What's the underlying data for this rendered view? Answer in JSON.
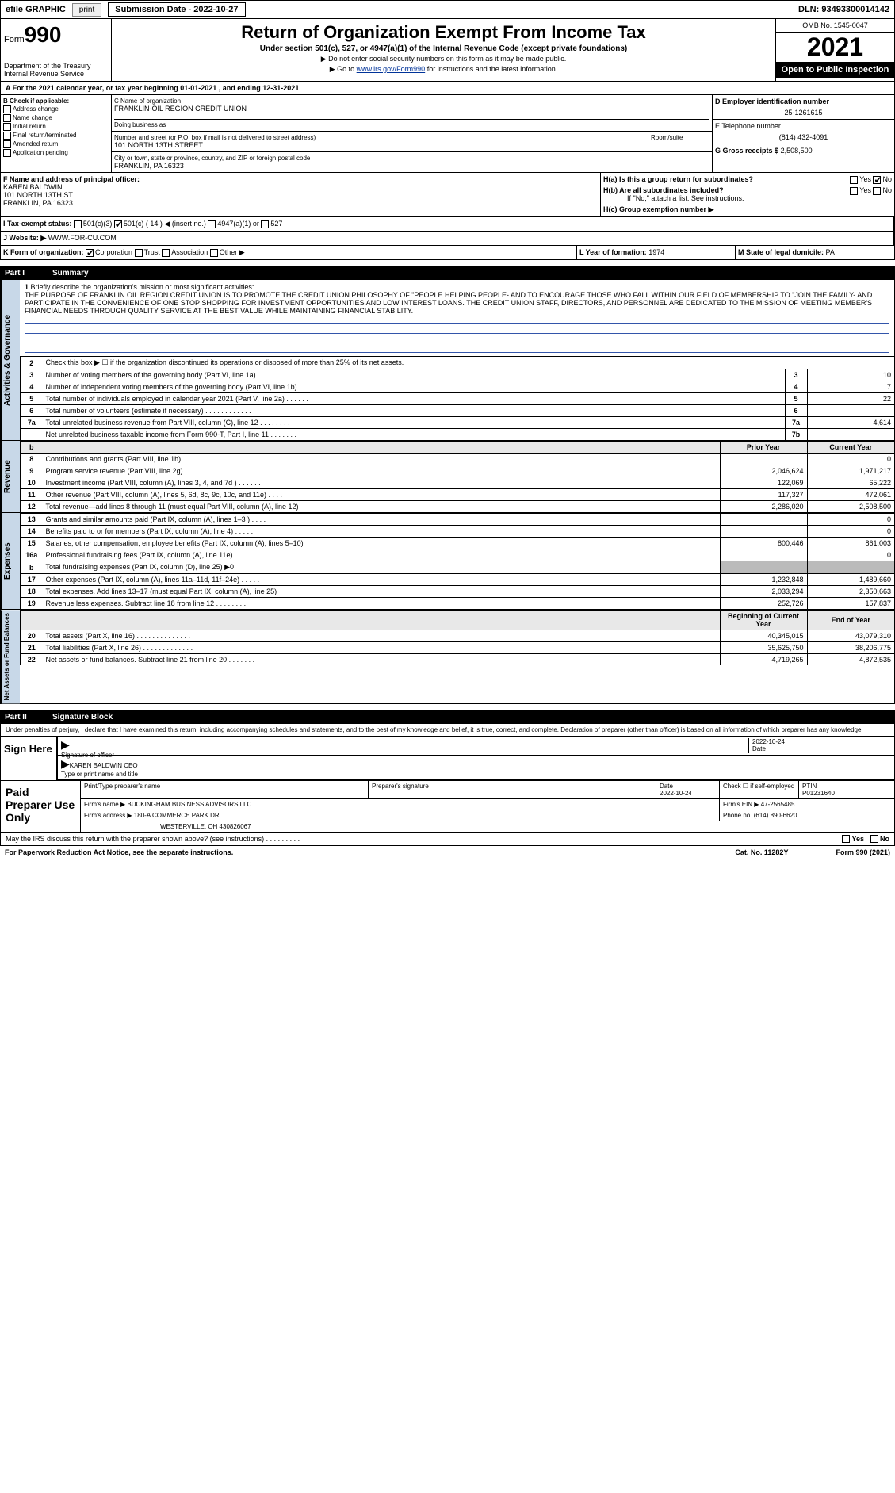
{
  "topbar": {
    "efile": "efile GRAPHIC",
    "print_btn": "print",
    "submission": "Submission Date - 2022-10-27",
    "dln": "DLN: 93493300014142"
  },
  "header": {
    "form_label": "Form",
    "form_num": "990",
    "dept": "Department of the Treasury\nInternal Revenue Service",
    "title": "Return of Organization Exempt From Income Tax",
    "subtitle": "Under section 501(c), 527, or 4947(a)(1) of the Internal Revenue Code (except private foundations)",
    "instruct1": "▶ Do not enter social security numbers on this form as it may be made public.",
    "instruct2_pre": "▶ Go to ",
    "instruct2_link": "www.irs.gov/Form990",
    "instruct2_post": " for instructions and the latest information.",
    "omb": "OMB No. 1545-0047",
    "year": "2021",
    "open_pub": "Open to Public Inspection"
  },
  "row_a": {
    "text": "A For the 2021 calendar year, or tax year beginning 01-01-2021   , and ending 12-31-2021"
  },
  "col_b": {
    "title": "B Check if applicable:",
    "items": [
      "Address change",
      "Name change",
      "Initial return",
      "Final return/terminated",
      "Amended return",
      "Application pending"
    ]
  },
  "col_c": {
    "name_label": "C Name of organization",
    "name": "FRANKLIN-OIL REGION CREDIT UNION",
    "dba_label": "Doing business as",
    "street_label": "Number and street (or P.O. box if mail is not delivered to street address)",
    "street": "101 NORTH 13TH STREET",
    "room_label": "Room/suite",
    "city_label": "City or town, state or province, country, and ZIP or foreign postal code",
    "city": "FRANKLIN, PA   16323"
  },
  "col_d": {
    "ein_label": "D Employer identification number",
    "ein": "25-1261615",
    "phone_label": "E Telephone number",
    "phone": "(814) 432-4091",
    "gross_label": "G Gross receipts $",
    "gross": "2,508,500"
  },
  "row_f": {
    "label": "F  Name and address of principal officer:",
    "name": "KAREN BALDWIN",
    "addr1": "101 NORTH 13TH ST",
    "addr2": "FRANKLIN, PA  16323"
  },
  "row_h": {
    "ha": "H(a)  Is this a group return for subordinates?",
    "hb": "H(b)  Are all subordinates included?",
    "hb_note": "If \"No,\" attach a list. See instructions.",
    "hc": "H(c)  Group exemption number ▶",
    "yes": "Yes",
    "no": "No"
  },
  "row_i": {
    "label": "I   Tax-exempt status:",
    "opt1": "501(c)(3)",
    "opt2": "501(c) ( 14 ) ◀ (insert no.)",
    "opt3": "4947(a)(1) or",
    "opt4": "527"
  },
  "row_j": {
    "label": "J   Website: ▶",
    "value": "WWW.FOR-CU.COM"
  },
  "row_k": {
    "label": "K Form of organization:",
    "opts": [
      "Corporation",
      "Trust",
      "Association",
      "Other ▶"
    ],
    "l_label": "L Year of formation:",
    "l_val": "1974",
    "m_label": "M State of legal domicile:",
    "m_val": "PA"
  },
  "part1": {
    "header_part": "Part I",
    "header_title": "Summary",
    "q1_label": "1",
    "q1_text": "Briefly describe the organization's mission or most significant activities:",
    "q1_body": "THE PURPOSE OF FRANKLIN OIL REGION CREDIT UNION IS TO PROMOTE THE CREDIT UNION PHILOSOPHY OF \"PEOPLE HELPING PEOPLE- AND TO ENCOURAGE THOSE WHO FALL WITHIN OUR FIELD OF MEMBERSHIP TO \"JOIN THE FAMILY- AND PARTICIPATE IN THE CONVENIENCE OF ONE STOP SHOPPING FOR INVESTMENT OPPORTUNITIES AND LOW INTEREST LOANS. THE CREDIT UNION STAFF, DIRECTORS, AND PERSONNEL ARE DEDICATED TO THE MISSION OF MEETING MEMBER'S FINANCIAL NEEDS THROUGH QUALITY SERVICE AT THE BEST VALUE WHILE MAINTAINING FINANCIAL STABILITY.",
    "q2": "Check this box ▶ ☐ if the organization discontinued its operations or disposed of more than 25% of its net assets.",
    "vtab_gov": "Activities & Governance",
    "vtab_rev": "Revenue",
    "vtab_exp": "Expenses",
    "vtab_net": "Net Assets or Fund Balances"
  },
  "governance_rows": [
    {
      "n": "3",
      "text": "Number of voting members of the governing body (Part VI, line 1a)   .   .   .   .   .   .   .   .",
      "lbl": "3",
      "val": "10"
    },
    {
      "n": "4",
      "text": "Number of independent voting members of the governing body (Part VI, line 1b)   .   .   .   .   .",
      "lbl": "4",
      "val": "7"
    },
    {
      "n": "5",
      "text": "Total number of individuals employed in calendar year 2021 (Part V, line 2a)   .   .   .   .   .   .",
      "lbl": "5",
      "val": "22"
    },
    {
      "n": "6",
      "text": "Total number of volunteers (estimate if necessary)   .   .   .   .   .   .   .   .   .   .   .   .",
      "lbl": "6",
      "val": ""
    },
    {
      "n": "7a",
      "text": "Total unrelated business revenue from Part VIII, column (C), line 12   .   .   .   .   .   .   .   .",
      "lbl": "7a",
      "val": "4,614"
    },
    {
      "n": "",
      "text": "Net unrelated business taxable income from Form 990-T, Part I, line 11   .   .   .   .   .   .   .",
      "lbl": "7b",
      "val": ""
    }
  ],
  "pycy_header": {
    "b": "b",
    "prior": "Prior Year",
    "current": "Current Year"
  },
  "revenue_rows": [
    {
      "n": "8",
      "text": "Contributions and grants (Part VIII, line 1h)   .   .   .   .   .   .   .   .   .   .",
      "py": "",
      "cy": "0"
    },
    {
      "n": "9",
      "text": "Program service revenue (Part VIII, line 2g)   .   .   .   .   .   .   .   .   .   .",
      "py": "2,046,624",
      "cy": "1,971,217"
    },
    {
      "n": "10",
      "text": "Investment income (Part VIII, column (A), lines 3, 4, and 7d )   .   .   .   .   .   .",
      "py": "122,069",
      "cy": "65,222"
    },
    {
      "n": "11",
      "text": "Other revenue (Part VIII, column (A), lines 5, 6d, 8c, 9c, 10c, and 11e)   .   .   .   .",
      "py": "117,327",
      "cy": "472,061"
    },
    {
      "n": "12",
      "text": "Total revenue—add lines 8 through 11 (must equal Part VIII, column (A), line 12)",
      "py": "2,286,020",
      "cy": "2,508,500"
    }
  ],
  "expense_rows": [
    {
      "n": "13",
      "text": "Grants and similar amounts paid (Part IX, column (A), lines 1–3 )   .   .   .   .",
      "py": "",
      "cy": "0"
    },
    {
      "n": "14",
      "text": "Benefits paid to or for members (Part IX, column (A), line 4)   .   .   .   .   .",
      "py": "",
      "cy": "0"
    },
    {
      "n": "15",
      "text": "Salaries, other compensation, employee benefits (Part IX, column (A), lines 5–10)",
      "py": "800,446",
      "cy": "861,003"
    },
    {
      "n": "16a",
      "text": "Professional fundraising fees (Part IX, column (A), line 11e)   .   .   .   .   .",
      "py": "",
      "cy": "0"
    },
    {
      "n": "b",
      "text": "Total fundraising expenses (Part IX, column (D), line 25) ▶0",
      "py": "shaded",
      "cy": "shaded"
    },
    {
      "n": "17",
      "text": "Other expenses (Part IX, column (A), lines 11a–11d, 11f–24e)   .   .   .   .   .",
      "py": "1,232,848",
      "cy": "1,489,660"
    },
    {
      "n": "18",
      "text": "Total expenses. Add lines 13–17 (must equal Part IX, column (A), line 25)",
      "py": "2,033,294",
      "cy": "2,350,663"
    },
    {
      "n": "19",
      "text": "Revenue less expenses. Subtract line 18 from line 12   .   .   .   .   .   .   .   .",
      "py": "252,726",
      "cy": "157,837"
    }
  ],
  "net_header": {
    "begin": "Beginning of Current Year",
    "end": "End of Year"
  },
  "net_rows": [
    {
      "n": "20",
      "text": "Total assets (Part X, line 16)   .   .   .   .   .   .   .   .   .   .   .   .   .   .",
      "py": "40,345,015",
      "cy": "43,079,310"
    },
    {
      "n": "21",
      "text": "Total liabilities (Part X, line 26)   .   .   .   .   .   .   .   .   .   .   .   .   .",
      "py": "35,625,750",
      "cy": "38,206,775"
    },
    {
      "n": "22",
      "text": "Net assets or fund balances. Subtract line 21 from line 20   .   .   .   .   .   .   .",
      "py": "4,719,265",
      "cy": "4,872,535"
    }
  ],
  "part2": {
    "header_part": "Part II",
    "header_title": "Signature Block",
    "penalties": "Under penalties of perjury, I declare that I have examined this return, including accompanying schedules and statements, and to the best of my knowledge and belief, it is true, correct, and complete. Declaration of preparer (other than officer) is based on all information of which preparer has any knowledge."
  },
  "sign": {
    "label": "Sign Here",
    "sig_label": "Signature of officer",
    "date_label": "Date",
    "date_val": "2022-10-24",
    "name": "KAREN BALDWIN CEO",
    "name_label": "Type or print name and title"
  },
  "paid": {
    "label": "Paid Preparer Use Only",
    "r1": {
      "c1_label": "Print/Type preparer's name",
      "c2_label": "Preparer's signature",
      "c3_label": "Date",
      "c3_val": "2022-10-24",
      "c4_label": "Check ☐ if self-employed",
      "c5_label": "PTIN",
      "c5_val": "P01231640"
    },
    "r2": {
      "c1_label": "Firm's name    ▶",
      "c1_val": "BUCKINGHAM BUSINESS ADVISORS LLC",
      "c2_label": "Firm's EIN ▶",
      "c2_val": "47-2565485"
    },
    "r3": {
      "c1_label": "Firm's address ▶",
      "c1_val": "180-A COMMERCE PARK DR",
      "c2_label": "Phone no.",
      "c2_val": "(614) 890-6620"
    },
    "r3b": "WESTERVILLE, OH   430826067"
  },
  "footer": {
    "discuss": "May the IRS discuss this return with the preparer shown above? (see instructions)   .   .   .   .   .   .   .   .   .",
    "yes": "Yes",
    "no": "No",
    "paperwork": "For Paperwork Reduction Act Notice, see the separate instructions.",
    "cat": "Cat. No. 11282Y",
    "formref": "Form 990 (2021)"
  },
  "colors": {
    "vtab_bg": "#c8d8e8",
    "shaded": "#bbbbbb",
    "link": "#003399"
  }
}
